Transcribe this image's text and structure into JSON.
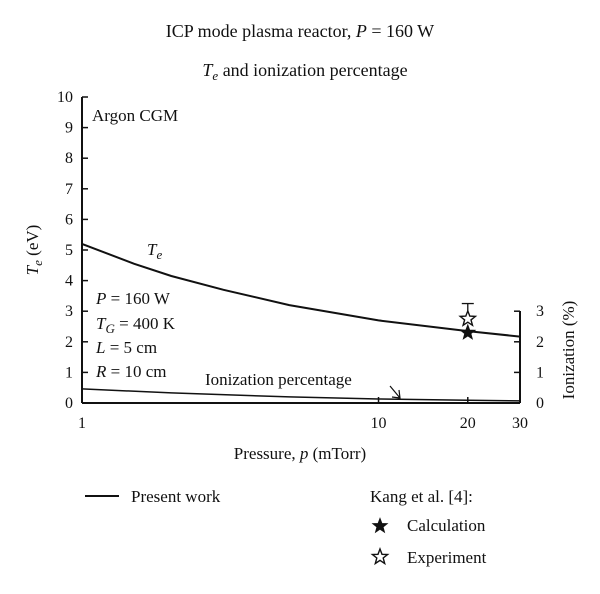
{
  "figure": {
    "title_line1_prefix": "ICP mode plasma reactor, ",
    "title_line1_var": "P",
    "title_line1_suffix": " = 160 W",
    "title_line2_var": "T",
    "title_line2_sub": "e",
    "title_line2_suffix": " and ionization percentage"
  },
  "chart_data": {
    "type": "line",
    "x_scale": "log",
    "xlim": [
      1,
      30
    ],
    "xticks": [
      1,
      10,
      20,
      30
    ],
    "xlabel_prefix": "Pressure, ",
    "xlabel_var": "p",
    "xlabel_suffix": " (mTorr)",
    "left_axis": {
      "label_var": "T",
      "label_sub": "e",
      "label_suffix": " (eV)",
      "ylim": [
        0,
        10
      ],
      "ticks": [
        0,
        1,
        2,
        3,
        4,
        5,
        6,
        7,
        8,
        9,
        10
      ]
    },
    "right_axis": {
      "label": "Ionization (%)",
      "ylim": [
        0,
        3
      ],
      "ticks": [
        0,
        1,
        2,
        3
      ]
    },
    "series": [
      {
        "name_var": "T",
        "name_sub": "e",
        "axis": "left",
        "x": [
          1,
          1.5,
          2,
          3,
          5,
          10,
          20,
          30
        ],
        "y": [
          5.2,
          4.55,
          4.15,
          3.7,
          3.2,
          2.7,
          2.35,
          2.17
        ]
      },
      {
        "name": "Ionization percentage",
        "axis": "right",
        "x": [
          1,
          2,
          5,
          10,
          20,
          30
        ],
        "y": [
          0.46,
          0.33,
          0.2,
          0.13,
          0.09,
          0.07
        ]
      }
    ],
    "markers": [
      {
        "name": "Calculation",
        "x": 20,
        "y": 2.3,
        "style": "filled-star"
      },
      {
        "name": "Experiment",
        "x": 20,
        "y": 2.75,
        "yerr_high": 3.25,
        "style": "open-star"
      }
    ],
    "annotations": {
      "gas": "Argon CGM",
      "params": [
        {
          "var": "P",
          "sub": "",
          "value": " = 160 W"
        },
        {
          "var": "T",
          "sub": "G",
          "value": " = 400 K"
        },
        {
          "var": "L",
          "sub": "",
          "value": " = 5 cm"
        },
        {
          "var": "R",
          "sub": "",
          "value": " = 10 cm"
        }
      ]
    },
    "legend": {
      "present_work": "Present work",
      "kang_title": "Kang et al. [4]:",
      "calculation": "Calculation",
      "experiment": "Experiment"
    }
  }
}
